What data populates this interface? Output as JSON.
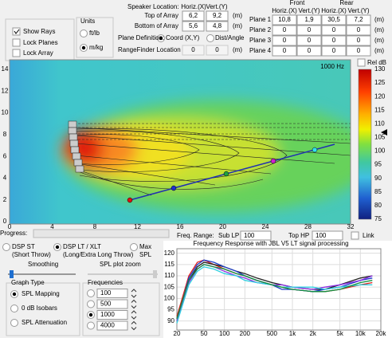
{
  "top_panel": {
    "show_rays": "Show Rays",
    "lock_planes": "Lock Planes",
    "lock_array": "Lock Array",
    "units_title": "Units",
    "units_options": [
      "ft/lb",
      "m/kg"
    ]
  },
  "speaker": {
    "title": "Speaker Location:",
    "columns": [
      "Horiz.(X)",
      "Vert.(Y)"
    ],
    "rows": [
      {
        "label": "Top of Array",
        "values": [
          "6,2",
          "9,2"
        ],
        "unit": "(m)"
      },
      {
        "label": "Bottom of Array",
        "values": [
          "5,6",
          "4,8"
        ],
        "unit": "(m)"
      }
    ],
    "plane_definition": "Plane Definition:",
    "plane_options": [
      "Coord (X,Y)",
      "Dist/Angle"
    ],
    "rangefinder": {
      "label": "RangeFinder Location",
      "values": [
        0,
        0
      ],
      "unit": "(m)"
    }
  },
  "planes": {
    "groups": [
      "Front",
      "Rear"
    ],
    "columns": [
      "Horiz.(X)",
      "Vert.(Y)",
      "Horiz.(X)",
      "Vert.(Y)"
    ],
    "rows": [
      {
        "label": "Plane 1",
        "values": [
          "10,8",
          "1,9",
          "30,5",
          "7,2"
        ],
        "unit": "(m)"
      },
      {
        "label": "Plane 2",
        "values": [
          0,
          0,
          0,
          0
        ],
        "unit": "(m)"
      },
      {
        "label": "Plane 3",
        "values": [
          0,
          0,
          0,
          0
        ],
        "unit": "(m)"
      },
      {
        "label": "Plane 4",
        "values": [
          0,
          0,
          0,
          0
        ],
        "unit": "(m)"
      }
    ]
  },
  "map": {
    "freq_label": "1000 Hz",
    "xticks": [
      0,
      4,
      8,
      12,
      16,
      20,
      24,
      28,
      32
    ],
    "yticks": [
      0,
      2,
      4,
      6,
      8,
      10,
      12,
      14
    ],
    "rel_db": "Rel dB",
    "colorbar_ticks": [
      75,
      80,
      85,
      90,
      95,
      100,
      105,
      110,
      115,
      120,
      125,
      130
    ]
  },
  "controls": {
    "progress": "Progress:",
    "freq_range": "Freq. Range:",
    "sub_lp": "Sub LP",
    "sub_lp_value": 100,
    "top_hp": "Top HP",
    "top_hp_value": 100,
    "link": "Link",
    "modes": [
      [
        "DSP ST",
        "(Short Throw)"
      ],
      [
        "DSP LT / XLT",
        "(Long/Extra Long Throw)"
      ],
      [
        "Max",
        "SPL"
      ]
    ],
    "smoothing": "Smoothing",
    "zoom": "SPL plot zoom",
    "graph_type": {
      "title": "Graph Type",
      "options": [
        "SPL Mapping",
        "0 dB Isobars",
        "SPL Attenuation"
      ]
    },
    "frequencies": {
      "title": "Frequencies",
      "values": [
        100,
        500,
        1000,
        4000
      ]
    }
  },
  "chart_data": {
    "type": "line",
    "title": "Frequency Response with JBL V5 LT signal processing",
    "log_x": true,
    "grid": true,
    "x": [
      20,
      30,
      40,
      50,
      70,
      100,
      150,
      200,
      300,
      500,
      700,
      1000,
      2000,
      3000,
      5000,
      10000,
      15000
    ],
    "xlim": [
      20,
      20000
    ],
    "xticks": [
      20,
      50,
      100,
      200,
      500,
      {
        "value": 1000,
        "label": "1k"
      },
      {
        "value": 2000,
        "label": "2k"
      },
      {
        "value": 5000,
        "label": "5k"
      },
      {
        "value": 10000,
        "label": "10k"
      },
      {
        "value": 20000,
        "label": "20k"
      }
    ],
    "ylim": [
      86,
      122
    ],
    "yticks": [
      90,
      95,
      100,
      105,
      110,
      115,
      120
    ],
    "series": [
      {
        "color": "#e02020",
        "values": [
          92,
          110,
          116,
          117,
          115,
          113,
          111,
          110,
          108,
          106,
          105,
          104,
          103,
          103,
          104,
          106,
          107
        ]
      },
      {
        "color": "#202020",
        "values": [
          91,
          108,
          114,
          116,
          115,
          114,
          112,
          111,
          109,
          107,
          106,
          105,
          104,
          104,
          106,
          109,
          110
        ]
      },
      {
        "color": "#1a3cc8",
        "values": [
          90,
          109,
          115,
          117,
          116,
          114,
          112,
          110,
          108,
          106,
          104,
          104,
          103,
          104,
          105,
          108,
          109
        ]
      },
      {
        "color": "#8a2be2",
        "values": [
          90,
          107,
          113,
          115,
          114,
          112,
          110,
          109,
          107,
          106,
          106,
          105,
          104,
          105,
          106,
          108,
          110
        ]
      },
      {
        "color": "#30d0e0",
        "values": [
          89,
          106,
          112,
          114,
          113,
          111,
          110,
          108,
          107,
          106,
          105,
          105,
          105,
          104,
          105,
          106,
          106
        ]
      },
      {
        "color": "#109040",
        "values": [
          91,
          108,
          113,
          115,
          114,
          113,
          111,
          110,
          108,
          106,
          105,
          104,
          103,
          103,
          104,
          107,
          108
        ]
      }
    ]
  }
}
